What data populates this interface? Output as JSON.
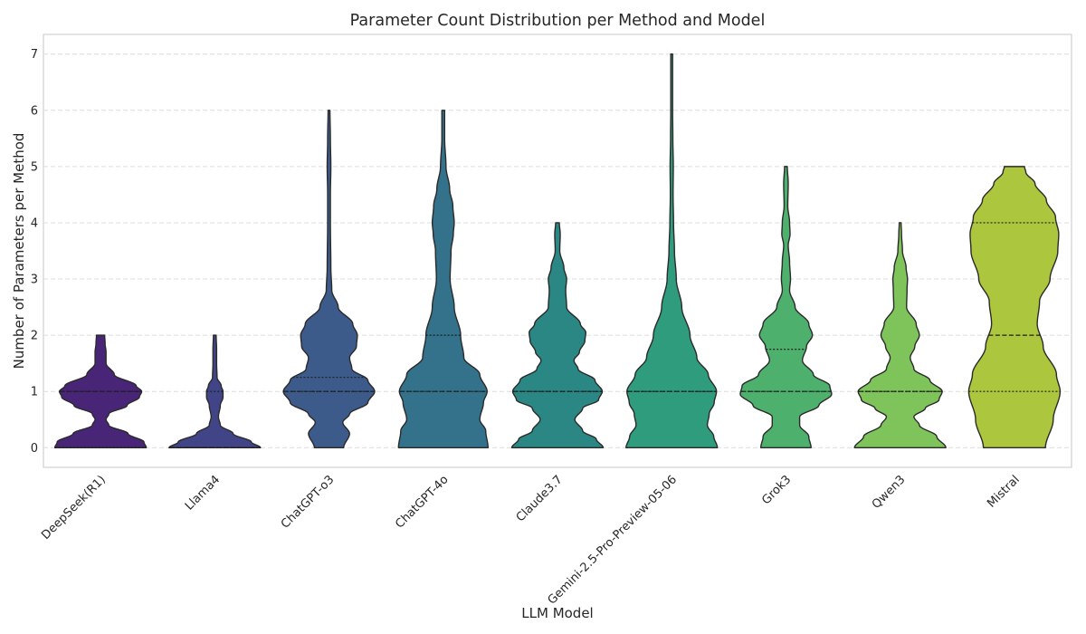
{
  "chart_data": {
    "type": "violin",
    "title": "Parameter Count Distribution per Method and Model",
    "xlabel": "LLM Model",
    "ylabel": "Number of Parameters per Method",
    "ylim": [
      -0.35,
      7.35
    ],
    "yticks": [
      0,
      1,
      2,
      3,
      4,
      5,
      6,
      7
    ],
    "grid": true,
    "legend": "none",
    "categories": [
      "DeepSeek(R1)",
      "Llama4",
      "ChatGPT-o3",
      "ChatGPT-4o",
      "Claude3.7",
      "Gemini-2.5-Pro-Preview-05-06",
      "Grok3",
      "Qwen3",
      "Mistral"
    ],
    "colors": [
      "#482576",
      "#414487",
      "#3c5b8a",
      "#33728a",
      "#2b8783",
      "#2f9c7e",
      "#4db06c",
      "#7ec45a",
      "#acc63e"
    ],
    "violins": [
      {
        "name": "DeepSeek(R1)",
        "min": 0,
        "max": 2,
        "q1": 0,
        "median": 1,
        "q3": 1,
        "profile": [
          [
            0,
            1.0
          ],
          [
            0.1,
            0.95
          ],
          [
            0.25,
            0.6
          ],
          [
            0.4,
            0.18
          ],
          [
            0.5,
            0.12
          ],
          [
            0.6,
            0.18
          ],
          [
            0.75,
            0.58
          ],
          [
            0.9,
            0.85
          ],
          [
            1.0,
            0.9
          ],
          [
            1.1,
            0.78
          ],
          [
            1.3,
            0.3
          ],
          [
            1.5,
            0.12
          ],
          [
            1.7,
            0.12
          ],
          [
            1.85,
            0.1
          ],
          [
            2.0,
            0.09
          ]
        ]
      },
      {
        "name": "Llama4",
        "min": 0,
        "max": 2,
        "q1": 0,
        "median": 0,
        "q3": 1,
        "profile": [
          [
            0,
            1.0
          ],
          [
            0.1,
            0.8
          ],
          [
            0.25,
            0.4
          ],
          [
            0.4,
            0.12
          ],
          [
            0.55,
            0.08
          ],
          [
            0.75,
            0.12
          ],
          [
            0.9,
            0.18
          ],
          [
            1.0,
            0.18
          ],
          [
            1.1,
            0.14
          ],
          [
            1.25,
            0.05
          ],
          [
            1.5,
            0.04
          ],
          [
            1.75,
            0.04
          ],
          [
            2.0,
            0.03
          ]
        ]
      },
      {
        "name": "ChatGPT-o3",
        "min": 0,
        "max": 6,
        "q1": 1,
        "median": 1,
        "q3": 1.25,
        "profile": [
          [
            0,
            0.32
          ],
          [
            0.25,
            0.45
          ],
          [
            0.45,
            0.3
          ],
          [
            0.6,
            0.45
          ],
          [
            0.8,
            0.85
          ],
          [
            1.0,
            1.0
          ],
          [
            1.2,
            0.85
          ],
          [
            1.4,
            0.5
          ],
          [
            1.6,
            0.45
          ],
          [
            1.8,
            0.6
          ],
          [
            2.0,
            0.62
          ],
          [
            2.2,
            0.52
          ],
          [
            2.5,
            0.2
          ],
          [
            2.8,
            0.06
          ],
          [
            3.2,
            0.04
          ],
          [
            4.0,
            0.03
          ],
          [
            4.5,
            0.03
          ],
          [
            5.0,
            0.04
          ],
          [
            5.5,
            0.03
          ],
          [
            6.0,
            0.02
          ]
        ]
      },
      {
        "name": "ChatGPT-4o",
        "min": 0,
        "max": 6,
        "q1": 1,
        "median": 1,
        "q3": 2,
        "profile": [
          [
            0,
            0.98
          ],
          [
            0.3,
            0.93
          ],
          [
            0.5,
            0.8
          ],
          [
            0.8,
            0.88
          ],
          [
            1.0,
            0.96
          ],
          [
            1.3,
            0.8
          ],
          [
            1.6,
            0.45
          ],
          [
            2.0,
            0.38
          ],
          [
            2.5,
            0.24
          ],
          [
            3.0,
            0.15
          ],
          [
            3.5,
            0.17
          ],
          [
            3.8,
            0.22
          ],
          [
            4.0,
            0.24
          ],
          [
            4.3,
            0.21
          ],
          [
            4.6,
            0.14
          ],
          [
            5.0,
            0.06
          ],
          [
            5.5,
            0.03
          ],
          [
            6.0,
            0.03
          ]
        ]
      },
      {
        "name": "Claude3.7",
        "min": 0,
        "max": 4,
        "q1": 1,
        "median": 1,
        "q3": 1,
        "profile": [
          [
            0,
            1.0
          ],
          [
            0.15,
            0.85
          ],
          [
            0.3,
            0.55
          ],
          [
            0.5,
            0.38
          ],
          [
            0.7,
            0.55
          ],
          [
            0.85,
            0.9
          ],
          [
            1.0,
            0.98
          ],
          [
            1.2,
            0.82
          ],
          [
            1.4,
            0.45
          ],
          [
            1.55,
            0.36
          ],
          [
            1.7,
            0.48
          ],
          [
            1.9,
            0.6
          ],
          [
            2.05,
            0.62
          ],
          [
            2.2,
            0.5
          ],
          [
            2.5,
            0.2
          ],
          [
            2.8,
            0.18
          ],
          [
            3.0,
            0.2
          ],
          [
            3.2,
            0.14
          ],
          [
            3.5,
            0.05
          ],
          [
            3.8,
            0.06
          ],
          [
            4.0,
            0.04
          ]
        ]
      },
      {
        "name": "Gemini-2.5-Pro-Preview-05-06",
        "min": 0,
        "max": 7,
        "q1": 1,
        "median": 1,
        "q3": 1,
        "profile": [
          [
            0,
            1.0
          ],
          [
            0.2,
            0.92
          ],
          [
            0.4,
            0.78
          ],
          [
            0.6,
            0.82
          ],
          [
            0.8,
            0.93
          ],
          [
            1.0,
            0.98
          ],
          [
            1.3,
            0.8
          ],
          [
            1.6,
            0.55
          ],
          [
            2.0,
            0.4
          ],
          [
            2.5,
            0.22
          ],
          [
            3.0,
            0.1
          ],
          [
            3.5,
            0.06
          ],
          [
            4.0,
            0.04
          ],
          [
            4.5,
            0.03
          ],
          [
            5.0,
            0.035
          ],
          [
            5.5,
            0.025
          ],
          [
            6.0,
            0.02
          ],
          [
            6.5,
            0.02
          ],
          [
            7.0,
            0.02
          ]
        ]
      },
      {
        "name": "Grok3",
        "min": 0,
        "max": 5,
        "q1": 1,
        "median": 1,
        "q3": 1.75,
        "profile": [
          [
            0,
            0.55
          ],
          [
            0.2,
            0.5
          ],
          [
            0.4,
            0.3
          ],
          [
            0.55,
            0.3
          ],
          [
            0.75,
            0.72
          ],
          [
            0.95,
            1.0
          ],
          [
            1.1,
            0.96
          ],
          [
            1.3,
            0.6
          ],
          [
            1.55,
            0.36
          ],
          [
            1.8,
            0.45
          ],
          [
            2.0,
            0.58
          ],
          [
            2.2,
            0.5
          ],
          [
            2.5,
            0.2
          ],
          [
            2.8,
            0.08
          ],
          [
            3.0,
            0.1
          ],
          [
            3.3,
            0.08
          ],
          [
            3.6,
            0.05
          ],
          [
            3.8,
            0.09
          ],
          [
            4.0,
            0.08
          ],
          [
            4.3,
            0.04
          ],
          [
            4.7,
            0.05
          ],
          [
            5.0,
            0.03
          ]
        ]
      },
      {
        "name": "Qwen3",
        "min": 0,
        "max": 4,
        "q1": 1,
        "median": 1,
        "q3": 1,
        "profile": [
          [
            0,
            1.0
          ],
          [
            0.2,
            0.8
          ],
          [
            0.4,
            0.42
          ],
          [
            0.55,
            0.3
          ],
          [
            0.7,
            0.55
          ],
          [
            0.85,
            0.85
          ],
          [
            1.0,
            0.92
          ],
          [
            1.2,
            0.65
          ],
          [
            1.4,
            0.3
          ],
          [
            1.6,
            0.22
          ],
          [
            1.8,
            0.32
          ],
          [
            2.0,
            0.42
          ],
          [
            2.2,
            0.35
          ],
          [
            2.5,
            0.14
          ],
          [
            2.8,
            0.15
          ],
          [
            3.0,
            0.16
          ],
          [
            3.2,
            0.13
          ],
          [
            3.5,
            0.05
          ],
          [
            3.8,
            0.03
          ],
          [
            4.0,
            0.02
          ]
        ]
      },
      {
        "name": "Mistral",
        "min": 0,
        "max": 5,
        "q1": 1,
        "median": 2,
        "q3": 4,
        "profile": [
          [
            0,
            0.68
          ],
          [
            0.5,
            0.85
          ],
          [
            1.0,
            1.0
          ],
          [
            1.3,
            0.92
          ],
          [
            1.8,
            0.63
          ],
          [
            2.2,
            0.5
          ],
          [
            2.6,
            0.55
          ],
          [
            3.0,
            0.78
          ],
          [
            3.5,
            0.95
          ],
          [
            3.8,
            0.97
          ],
          [
            4.1,
            0.9
          ],
          [
            4.4,
            0.7
          ],
          [
            4.7,
            0.45
          ],
          [
            4.9,
            0.25
          ],
          [
            5.0,
            0.22
          ]
        ]
      }
    ]
  }
}
